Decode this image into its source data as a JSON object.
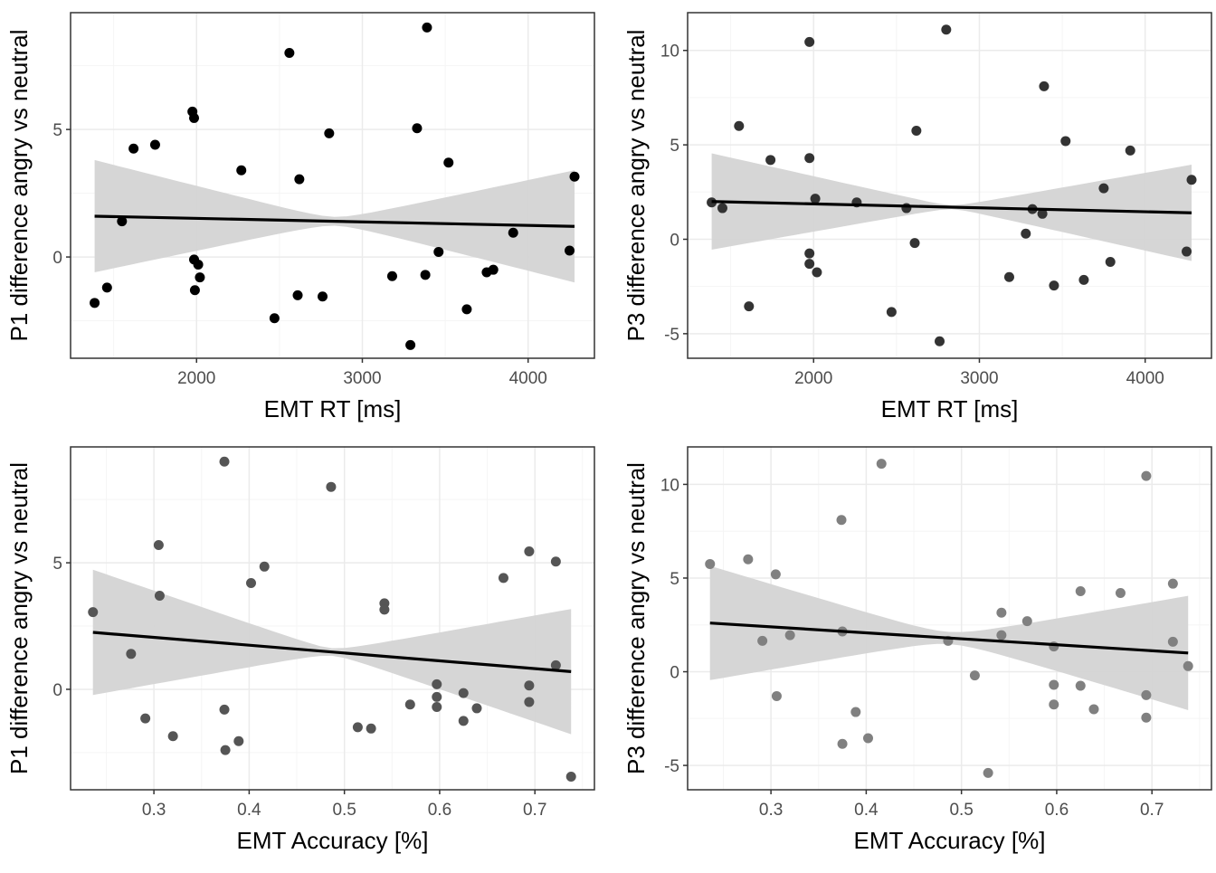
{
  "theme": {
    "grid_major": "#ebebeb",
    "grid_minor": "#f5f5f5",
    "panel_border": "#333333",
    "ribbon": "#d4d4d4",
    "fit_line": "#000000",
    "tick_label": "#4d4d4d",
    "axis_title": "#000000"
  },
  "chart_data": [
    {
      "type": "scatter",
      "xlabel": "EMT RT [ms]",
      "ylabel": "P1 difference angry vs neutral",
      "xlim": [
        1240,
        4400
      ],
      "ylim": [
        -3.97,
        9.58
      ],
      "xticks": [
        2000,
        3000,
        4000
      ],
      "yticks": [
        0,
        5
      ],
      "xtick_labels": [
        "2000",
        "3000",
        "4000"
      ],
      "ytick_labels": [
        "0",
        "5"
      ],
      "xminor": [
        1500,
        2500,
        3500
      ],
      "yminor": [
        -2.5,
        2.5,
        7.5
      ],
      "point_color": "#000000",
      "grid": true,
      "points": [
        {
          "x": 1385,
          "y": -1.8
        },
        {
          "x": 1460,
          "y": -1.2
        },
        {
          "x": 1550,
          "y": 1.4
        },
        {
          "x": 1620,
          "y": 4.25
        },
        {
          "x": 1750,
          "y": 4.4
        },
        {
          "x": 1975,
          "y": 5.7
        },
        {
          "x": 1985,
          "y": 5.45
        },
        {
          "x": 1985,
          "y": -0.1
        },
        {
          "x": 1990,
          "y": -1.3
        },
        {
          "x": 2010,
          "y": -0.3
        },
        {
          "x": 2020,
          "y": -0.8
        },
        {
          "x": 2270,
          "y": 3.4
        },
        {
          "x": 2470,
          "y": -2.4
        },
        {
          "x": 2560,
          "y": 8.0
        },
        {
          "x": 2610,
          "y": -1.5
        },
        {
          "x": 2620,
          "y": 3.05
        },
        {
          "x": 2760,
          "y": -1.55
        },
        {
          "x": 2800,
          "y": 4.85
        },
        {
          "x": 3180,
          "y": -0.75
        },
        {
          "x": 3290,
          "y": -3.45
        },
        {
          "x": 3330,
          "y": 5.05
        },
        {
          "x": 3380,
          "y": -0.7
        },
        {
          "x": 3390,
          "y": 9.0
        },
        {
          "x": 3460,
          "y": 0.2
        },
        {
          "x": 3520,
          "y": 3.7
        },
        {
          "x": 3630,
          "y": -2.05
        },
        {
          "x": 3750,
          "y": -0.6
        },
        {
          "x": 3790,
          "y": -0.5
        },
        {
          "x": 3910,
          "y": 0.95
        },
        {
          "x": 4250,
          "y": 0.25
        },
        {
          "x": 4280,
          "y": 3.15
        }
      ],
      "fit": {
        "x": [
          1385,
          4280
        ],
        "y": [
          1.6,
          1.2
        ],
        "band_lower": [
          -0.6,
          -1.3
        ],
        "band_mid": [
          0.55,
          0.9
        ],
        "band_upper": [
          3.8,
          3.65
        ]
      }
    },
    {
      "type": "scatter",
      "xlabel": "EMT RT [ms]",
      "ylabel": "P3 difference angry vs neutral",
      "xlim": [
        1240,
        4400
      ],
      "ylim": [
        -6.3,
        12.0
      ],
      "xticks": [
        2000,
        3000,
        4000
      ],
      "yticks": [
        -5,
        0,
        5,
        10
      ],
      "xtick_labels": [
        "2000",
        "3000",
        "4000"
      ],
      "ytick_labels": [
        "-5",
        "0",
        "5",
        "10"
      ],
      "xminor": [
        1500,
        2500,
        3500
      ],
      "yminor": [
        -2.5,
        2.5,
        7.5
      ],
      "point_color": "#333333",
      "grid": true,
      "points": [
        {
          "x": 1385,
          "y": 1.95
        },
        {
          "x": 1450,
          "y": 1.65
        },
        {
          "x": 1550,
          "y": 6.0
        },
        {
          "x": 1610,
          "y": -3.55
        },
        {
          "x": 1740,
          "y": 4.2
        },
        {
          "x": 1975,
          "y": 10.45
        },
        {
          "x": 1975,
          "y": 4.3
        },
        {
          "x": 1975,
          "y": -0.75
        },
        {
          "x": 1975,
          "y": -1.3
        },
        {
          "x": 2010,
          "y": 2.15
        },
        {
          "x": 2020,
          "y": -1.75
        },
        {
          "x": 2260,
          "y": 1.95
        },
        {
          "x": 2470,
          "y": -3.85
        },
        {
          "x": 2560,
          "y": 1.65
        },
        {
          "x": 2610,
          "y": -0.2
        },
        {
          "x": 2620,
          "y": 5.75
        },
        {
          "x": 2760,
          "y": -5.4
        },
        {
          "x": 2800,
          "y": 11.1
        },
        {
          "x": 3180,
          "y": -2.0
        },
        {
          "x": 3280,
          "y": 0.3
        },
        {
          "x": 3320,
          "y": 1.6
        },
        {
          "x": 3380,
          "y": 1.35
        },
        {
          "x": 3390,
          "y": 8.1
        },
        {
          "x": 3450,
          "y": -2.45
        },
        {
          "x": 3520,
          "y": 5.2
        },
        {
          "x": 3630,
          "y": -2.15
        },
        {
          "x": 3750,
          "y": 2.7
        },
        {
          "x": 3790,
          "y": -1.2
        },
        {
          "x": 3910,
          "y": 4.7
        },
        {
          "x": 4250,
          "y": -0.65
        },
        {
          "x": 4280,
          "y": 3.15
        }
      ],
      "fit": {
        "x": [
          1385,
          4280
        ],
        "y": [
          2.0,
          1.4
        ],
        "band_lower": [
          -0.3,
          -1.6
        ],
        "band_mid": [
          1.05,
          1.25
        ],
        "band_upper": [
          4.8,
          4.5
        ]
      }
    },
    {
      "type": "scatter",
      "xlabel": "EMT Accuracy [%]",
      "ylabel": "P1 difference angry vs neutral",
      "xlim": [
        0.2125,
        0.7625
      ],
      "ylim": [
        -3.97,
        9.58
      ],
      "xticks": [
        0.3,
        0.4,
        0.5,
        0.6,
        0.7
      ],
      "yticks": [
        0,
        5
      ],
      "xtick_labels": [
        "0.3",
        "0.4",
        "0.5",
        "0.6",
        "0.7"
      ],
      "ytick_labels": [
        "0",
        "5"
      ],
      "xminor": [
        0.25,
        0.35,
        0.45,
        0.55,
        0.65,
        0.75
      ],
      "yminor": [
        -2.5,
        2.5,
        7.5
      ],
      "point_color": "#555555",
      "grid": true,
      "points": [
        {
          "x": 0.236,
          "y": 3.05
        },
        {
          "x": 0.276,
          "y": 1.4
        },
        {
          "x": 0.291,
          "y": -1.15
        },
        {
          "x": 0.305,
          "y": 5.7
        },
        {
          "x": 0.306,
          "y": 3.7
        },
        {
          "x": 0.32,
          "y": -1.85
        },
        {
          "x": 0.374,
          "y": 9.0
        },
        {
          "x": 0.374,
          "y": -0.8
        },
        {
          "x": 0.375,
          "y": -2.4
        },
        {
          "x": 0.389,
          "y": -2.05
        },
        {
          "x": 0.402,
          "y": 4.2
        },
        {
          "x": 0.416,
          "y": 4.85
        },
        {
          "x": 0.486,
          "y": 8.0
        },
        {
          "x": 0.514,
          "y": -1.5
        },
        {
          "x": 0.528,
          "y": -1.55
        },
        {
          "x": 0.542,
          "y": 3.4
        },
        {
          "x": 0.542,
          "y": 3.15
        },
        {
          "x": 0.569,
          "y": -0.6
        },
        {
          "x": 0.597,
          "y": 0.2
        },
        {
          "x": 0.597,
          "y": -0.3
        },
        {
          "x": 0.597,
          "y": -0.7
        },
        {
          "x": 0.625,
          "y": -0.15
        },
        {
          "x": 0.625,
          "y": -1.25
        },
        {
          "x": 0.639,
          "y": -0.75
        },
        {
          "x": 0.667,
          "y": 4.4
        },
        {
          "x": 0.694,
          "y": 5.45
        },
        {
          "x": 0.694,
          "y": 0.15
        },
        {
          "x": 0.694,
          "y": -0.5
        },
        {
          "x": 0.722,
          "y": 5.05
        },
        {
          "x": 0.722,
          "y": 0.95
        },
        {
          "x": 0.738,
          "y": -3.45
        }
      ],
      "fit": {
        "x": [
          0.236,
          0.738
        ],
        "y": [
          2.25,
          0.7
        ],
        "band_lower": [
          -0.2,
          -1.4
        ],
        "band_mid": [
          0.95,
          0.65
        ],
        "band_upper": [
          4.75,
          2.85
        ]
      }
    },
    {
      "type": "scatter",
      "xlabel": "EMT Accuracy [%]",
      "ylabel": "P3 difference angry vs neutral",
      "xlim": [
        0.2125,
        0.7625
      ],
      "ylim": [
        -6.3,
        12.0
      ],
      "xticks": [
        0.3,
        0.4,
        0.5,
        0.6,
        0.7
      ],
      "yticks": [
        -5,
        0,
        5,
        10
      ],
      "xtick_labels": [
        "0.3",
        "0.4",
        "0.5",
        "0.6",
        "0.7"
      ],
      "ytick_labels": [
        "-5",
        "0",
        "5",
        "10"
      ],
      "xminor": [
        0.25,
        0.35,
        0.45,
        0.55,
        0.65,
        0.75
      ],
      "yminor": [
        -2.5,
        2.5,
        7.5
      ],
      "point_color": "#808080",
      "grid": true,
      "points": [
        {
          "x": 0.236,
          "y": 5.75
        },
        {
          "x": 0.276,
          "y": 6.0
        },
        {
          "x": 0.291,
          "y": 1.65
        },
        {
          "x": 0.305,
          "y": 5.2
        },
        {
          "x": 0.306,
          "y": -1.3
        },
        {
          "x": 0.32,
          "y": 1.95
        },
        {
          "x": 0.374,
          "y": 8.1
        },
        {
          "x": 0.375,
          "y": 2.15
        },
        {
          "x": 0.375,
          "y": -3.85
        },
        {
          "x": 0.389,
          "y": -2.15
        },
        {
          "x": 0.402,
          "y": -3.55
        },
        {
          "x": 0.416,
          "y": 11.1
        },
        {
          "x": 0.486,
          "y": 1.65
        },
        {
          "x": 0.514,
          "y": -0.2
        },
        {
          "x": 0.528,
          "y": -5.4
        },
        {
          "x": 0.542,
          "y": 3.15
        },
        {
          "x": 0.542,
          "y": 1.95
        },
        {
          "x": 0.569,
          "y": 2.7
        },
        {
          "x": 0.597,
          "y": 1.35
        },
        {
          "x": 0.597,
          "y": -0.7
        },
        {
          "x": 0.597,
          "y": -1.75
        },
        {
          "x": 0.625,
          "y": 4.3
        },
        {
          "x": 0.625,
          "y": -0.75
        },
        {
          "x": 0.639,
          "y": -2.0
        },
        {
          "x": 0.667,
          "y": 4.2
        },
        {
          "x": 0.694,
          "y": 10.45
        },
        {
          "x": 0.694,
          "y": -1.25
        },
        {
          "x": 0.694,
          "y": -2.45
        },
        {
          "x": 0.722,
          "y": 4.7
        },
        {
          "x": 0.722,
          "y": 1.6
        },
        {
          "x": 0.738,
          "y": 0.3
        }
      ],
      "fit": {
        "x": [
          0.236,
          0.738
        ],
        "y": [
          2.6,
          1.0
        ],
        "band_lower": [
          -0.45,
          -1.7
        ],
        "band_mid": [
          1.65,
          1.0
        ],
        "band_upper": [
          5.65,
          3.6
        ]
      }
    }
  ]
}
